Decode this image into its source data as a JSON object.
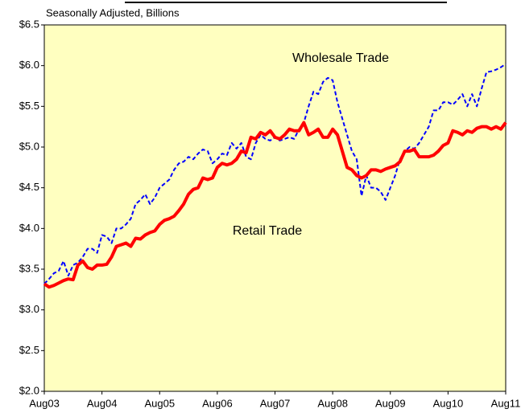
{
  "chart_data": {
    "type": "line",
    "subtitle": "Seasonally Adjusted, Billions",
    "annotations": [
      "Wholesale Trade",
      "Retail Trade"
    ],
    "categories": [
      "Aug03",
      null,
      null,
      null,
      null,
      null,
      null,
      null,
      null,
      null,
      null,
      null,
      "Aug04",
      null,
      null,
      null,
      null,
      null,
      null,
      null,
      null,
      null,
      null,
      null,
      "Aug05",
      null,
      null,
      null,
      null,
      null,
      null,
      null,
      null,
      null,
      null,
      null,
      "Aug06",
      null,
      null,
      null,
      null,
      null,
      null,
      null,
      null,
      null,
      null,
      null,
      "Aug07",
      null,
      null,
      null,
      null,
      null,
      null,
      null,
      null,
      null,
      null,
      null,
      "Aug08",
      null,
      null,
      null,
      null,
      null,
      null,
      null,
      null,
      null,
      null,
      null,
      "Aug09",
      null,
      null,
      null,
      null,
      null,
      null,
      null,
      null,
      null,
      null,
      null,
      "Aug10",
      null,
      null,
      null,
      null,
      null,
      null,
      null,
      null,
      null,
      null,
      null,
      "Aug11"
    ],
    "series": [
      {
        "name": "Wholesale Trade",
        "color": "#0000ff",
        "dashed": true,
        "values": [
          3.32,
          3.38,
          3.45,
          3.48,
          3.6,
          3.42,
          3.55,
          3.58,
          3.65,
          3.75,
          3.75,
          3.7,
          3.92,
          3.9,
          3.82,
          4.0,
          4.0,
          4.05,
          4.12,
          4.3,
          4.35,
          4.42,
          4.3,
          4.38,
          4.5,
          4.55,
          4.6,
          4.72,
          4.8,
          4.82,
          4.88,
          4.85,
          4.92,
          4.97,
          4.95,
          4.8,
          4.85,
          4.92,
          4.9,
          5.05,
          4.98,
          5.05,
          4.88,
          4.85,
          5.05,
          5.15,
          5.1,
          5.08,
          5.12,
          5.08,
          5.1,
          5.12,
          5.1,
          5.22,
          5.3,
          5.5,
          5.68,
          5.65,
          5.8,
          5.85,
          5.82,
          5.55,
          5.35,
          5.15,
          4.95,
          4.85,
          4.4,
          4.65,
          4.5,
          4.5,
          4.45,
          4.35,
          4.5,
          4.65,
          4.85,
          4.95,
          5.0,
          4.98,
          5.05,
          5.15,
          5.25,
          5.45,
          5.45,
          5.55,
          5.55,
          5.52,
          5.58,
          5.65,
          5.5,
          5.65,
          5.5,
          5.72,
          5.92,
          5.93,
          5.95,
          5.98,
          6.02
        ]
      },
      {
        "name": "Retail Trade",
        "color": "#ff0000",
        "dashed": false,
        "values": [
          3.32,
          3.28,
          3.3,
          3.33,
          3.36,
          3.38,
          3.37,
          3.55,
          3.6,
          3.52,
          3.5,
          3.55,
          3.55,
          3.56,
          3.65,
          3.78,
          3.8,
          3.82,
          3.78,
          3.88,
          3.87,
          3.92,
          3.95,
          3.97,
          4.05,
          4.1,
          4.12,
          4.15,
          4.22,
          4.3,
          4.42,
          4.48,
          4.5,
          4.62,
          4.6,
          4.62,
          4.75,
          4.8,
          4.78,
          4.8,
          4.85,
          4.95,
          4.93,
          5.12,
          5.1,
          5.18,
          5.15,
          5.2,
          5.12,
          5.1,
          5.15,
          5.22,
          5.2,
          5.2,
          5.3,
          5.15,
          5.18,
          5.22,
          5.12,
          5.12,
          5.22,
          5.15,
          4.95,
          4.75,
          4.72,
          4.65,
          4.62,
          4.65,
          4.72,
          4.72,
          4.7,
          4.73,
          4.75,
          4.77,
          4.82,
          4.95,
          4.95,
          4.97,
          4.88,
          4.88,
          4.88,
          4.9,
          4.95,
          5.02,
          5.05,
          5.2,
          5.18,
          5.15,
          5.2,
          5.18,
          5.23,
          5.25,
          5.25,
          5.22,
          5.25,
          5.22,
          5.3
        ]
      }
    ],
    "ylim": [
      2.0,
      6.5
    ],
    "yticks": [
      {
        "value": 2.0,
        "label": "$2.0"
      },
      {
        "value": 2.5,
        "label": "$2.5"
      },
      {
        "value": 3.0,
        "label": "$3.0"
      },
      {
        "value": 3.5,
        "label": "$3.5"
      },
      {
        "value": 4.0,
        "label": "$4.0"
      },
      {
        "value": 4.5,
        "label": "$4.5"
      },
      {
        "value": 5.0,
        "label": "$5.0"
      },
      {
        "value": 5.5,
        "label": "$5.5"
      },
      {
        "value": 6.0,
        "label": "$6.0"
      },
      {
        "value": 6.5,
        "label": "$6.5"
      }
    ],
    "plot_background": "#ffffc0",
    "grid": false
  }
}
